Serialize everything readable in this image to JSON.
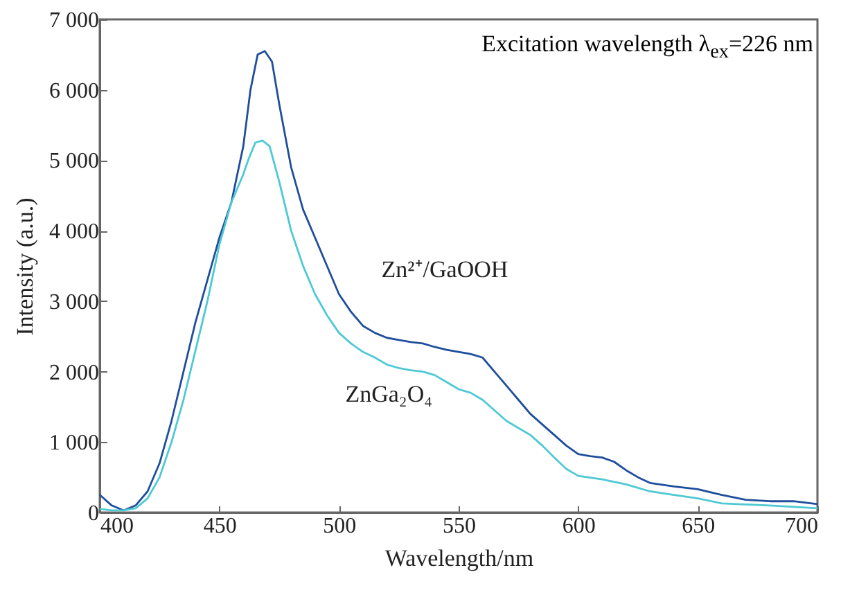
{
  "chart_data": {
    "type": "line",
    "xlabel": "Wavelength/nm",
    "ylabel": "Intensity (a.u.)",
    "annotations": [
      "Excitation wavelength λ$_{ex}$=226 nm"
    ],
    "xlim": [
      400,
      700
    ],
    "xticks": [
      400,
      450,
      500,
      550,
      600,
      650,
      700
    ],
    "ylim": [
      0,
      7000
    ],
    "yticks": [
      0,
      {
        "value": 1000,
        "label": "1 000"
      },
      {
        "value": 2000,
        "label": "2 000"
      },
      {
        "value": 3000,
        "label": "3 000"
      },
      {
        "value": 4000,
        "label": "4 000"
      },
      {
        "value": 5000,
        "label": "5 000"
      },
      {
        "value": 6000,
        "label": "6 000"
      },
      {
        "value": 7000,
        "label": "7 000"
      }
    ],
    "grid": false,
    "legend": false,
    "marker": "none",
    "line_style": "solid",
    "series": [
      {
        "name": "Zn²⁺/GaOOH",
        "color": "#1f4e9c",
        "x": [
          400,
          405,
          410,
          415,
          420,
          425,
          430,
          435,
          440,
          445,
          450,
          455,
          460,
          463,
          466,
          469,
          472,
          475,
          480,
          485,
          490,
          495,
          500,
          505,
          510,
          515,
          520,
          525,
          530,
          535,
          540,
          545,
          550,
          555,
          560,
          565,
          570,
          575,
          580,
          585,
          590,
          595,
          600,
          605,
          610,
          615,
          620,
          625,
          630,
          640,
          650,
          660,
          670,
          680,
          690,
          700
        ],
        "values": [
          250,
          100,
          30,
          100,
          300,
          700,
          1300,
          2000,
          2700,
          3300,
          3900,
          4400,
          5200,
          6000,
          6500,
          6550,
          6400,
          5800,
          4900,
          4300,
          3900,
          3500,
          3100,
          2850,
          2650,
          2550,
          2480,
          2450,
          2420,
          2400,
          2350,
          2310,
          2280,
          2250,
          2200,
          2000,
          1800,
          1600,
          1400,
          1250,
          1100,
          950,
          830,
          800,
          780,
          720,
          600,
          500,
          420,
          370,
          330,
          250,
          180,
          160,
          160,
          120
        ]
      },
      {
        "name": "ZnGa₂O₄",
        "color": "#4ec9d4",
        "x": [
          400,
          405,
          410,
          415,
          420,
          425,
          430,
          435,
          440,
          445,
          450,
          455,
          460,
          462,
          465,
          468,
          471,
          475,
          480,
          485,
          490,
          495,
          500,
          505,
          510,
          515,
          520,
          525,
          530,
          535,
          540,
          545,
          550,
          555,
          560,
          565,
          570,
          575,
          580,
          585,
          590,
          595,
          600,
          610,
          620,
          630,
          640,
          650,
          660,
          680,
          700
        ],
        "values": [
          50,
          30,
          30,
          60,
          200,
          500,
          1000,
          1600,
          2300,
          3000,
          3800,
          4400,
          4800,
          5000,
          5250,
          5280,
          5200,
          4700,
          4000,
          3500,
          3100,
          2800,
          2550,
          2400,
          2280,
          2200,
          2100,
          2050,
          2020,
          2000,
          1950,
          1850,
          1750,
          1700,
          1600,
          1450,
          1300,
          1200,
          1100,
          950,
          780,
          620,
          520,
          470,
          400,
          300,
          250,
          200,
          130,
          100,
          60
        ]
      }
    ]
  }
}
